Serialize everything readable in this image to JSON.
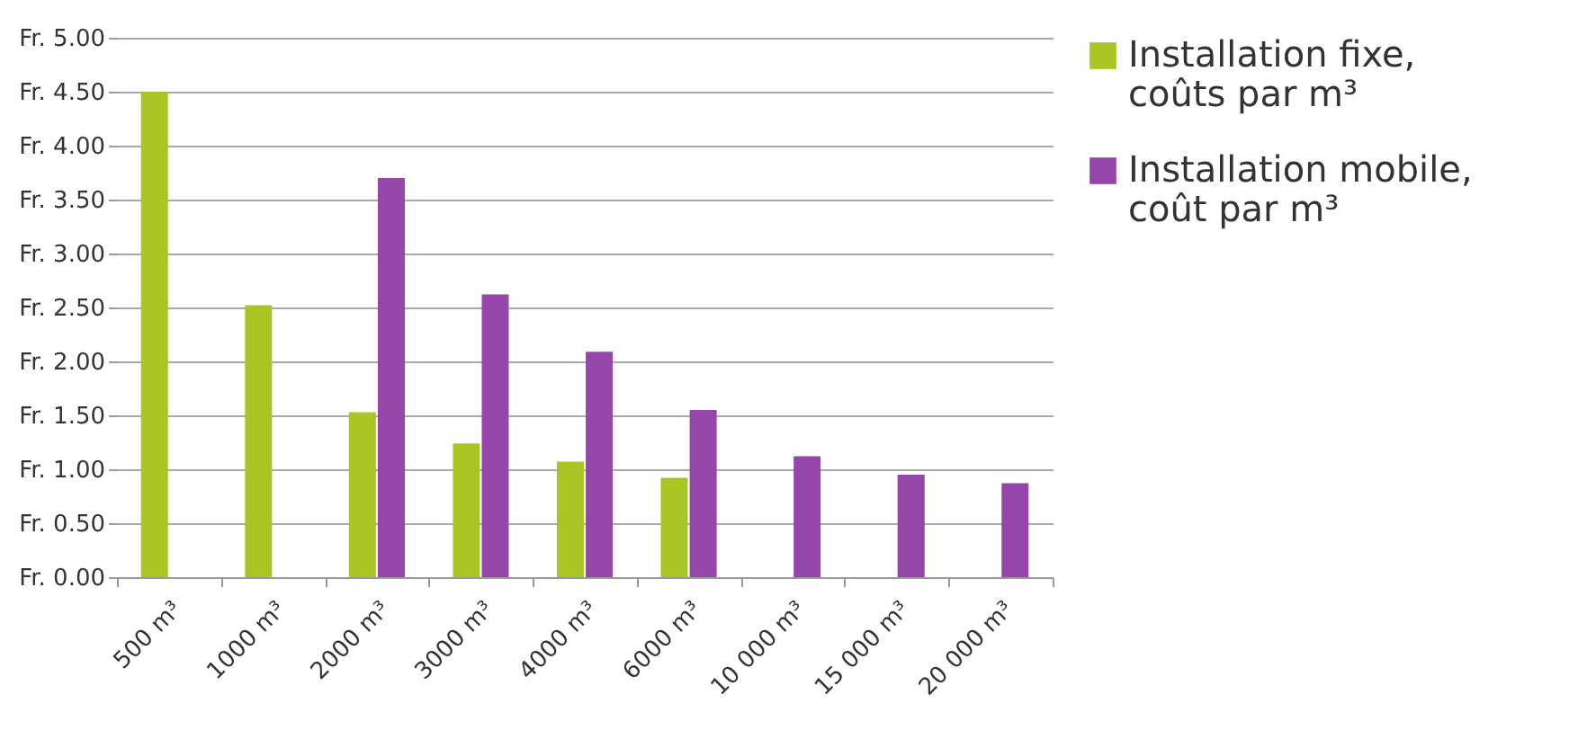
{
  "chart_data": {
    "type": "bar",
    "categories": [
      "500 m³",
      "1000 m³",
      "2000 m³",
      "3000 m³",
      "4000 m³",
      "6000 m³",
      "10 000 m³",
      "15 000 m³",
      "20 000 m³"
    ],
    "series": [
      {
        "name": "Installation fixe, coûts par m³",
        "color": "#a8c523",
        "values": [
          4.5,
          2.52,
          1.53,
          1.24,
          1.07,
          0.92,
          null,
          null,
          null
        ]
      },
      {
        "name": "Installation mobile, coût par m³",
        "color": "#9447a8",
        "values": [
          null,
          null,
          3.7,
          2.62,
          2.09,
          1.55,
          1.12,
          0.95,
          0.87
        ]
      }
    ],
    "ylim": [
      0,
      5
    ],
    "yticks": [
      {
        "value": 0,
        "label": "Fr. 0.00"
      },
      {
        "value": 0.5,
        "label": "Fr. 0.50"
      },
      {
        "value": 1,
        "label": "Fr. 1.00"
      },
      {
        "value": 1.5,
        "label": "Fr. 1.50"
      },
      {
        "value": 2,
        "label": "Fr. 2.00"
      },
      {
        "value": 2.5,
        "label": "Fr. 2.50"
      },
      {
        "value": 3,
        "label": "Fr. 3.00"
      },
      {
        "value": 3.5,
        "label": "Fr. 3.50"
      },
      {
        "value": 4,
        "label": "Fr. 4.00"
      },
      {
        "value": 4.5,
        "label": "Fr. 4.50"
      },
      {
        "value": 5,
        "label": "Fr. 5.00"
      }
    ],
    "grid": "y",
    "legend": "top right"
  }
}
